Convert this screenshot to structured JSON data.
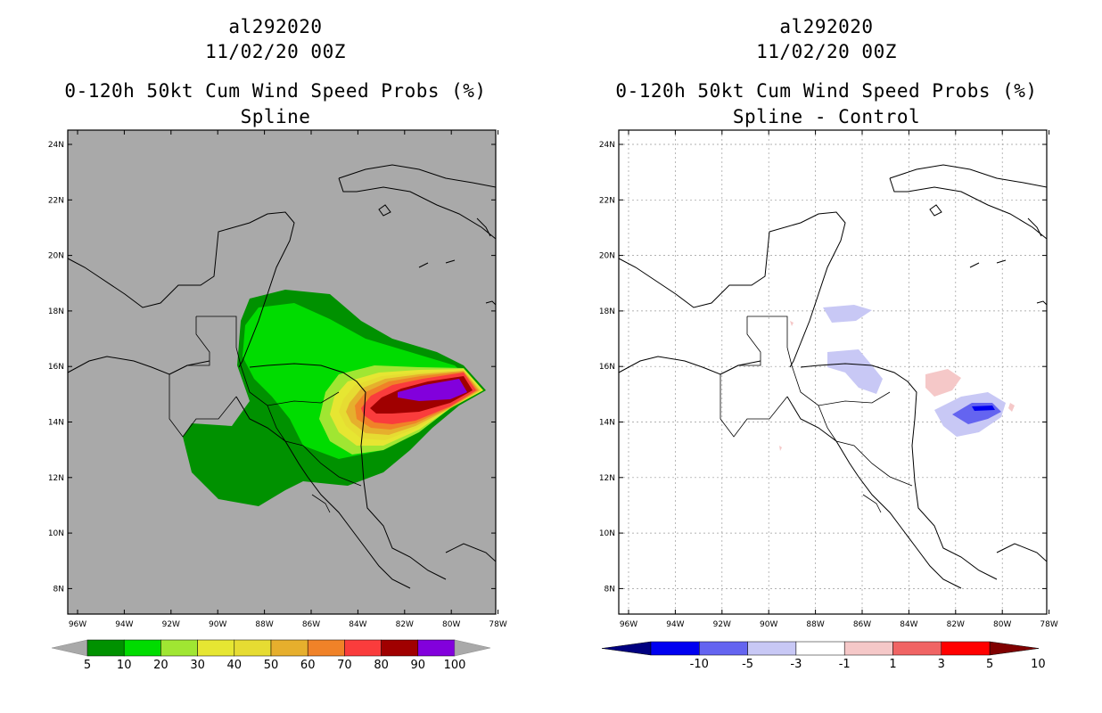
{
  "left_panel": {
    "storm_id": "al292020",
    "init_time": "11/02/20 00Z",
    "product": "0-120h 50kt Cum Wind Speed Probs (%)",
    "subtitle": "Spline",
    "colorbar": {
      "labels": [
        "5",
        "10",
        "20",
        "30",
        "40",
        "50",
        "60",
        "70",
        "80",
        "90",
        "100"
      ],
      "colors": [
        "#009100",
        "#00dc00",
        "#a0e632",
        "#e6e632",
        "#e6dc32",
        "#e6af2d",
        "#f08228",
        "#fa3c3c",
        "#a00000",
        "#8200dc"
      ],
      "end_color": "#a9a9a9"
    },
    "background_color": "#a9a9a9"
  },
  "right_panel": {
    "storm_id": "al292020",
    "init_time": "11/02/20 00Z",
    "product": "0-120h 50kt Cum Wind Speed Probs (%)",
    "subtitle": "Spline - Control",
    "colorbar": {
      "labels": [
        "-10",
        "-5",
        "-3",
        "-1",
        "1",
        "3",
        "5",
        "10"
      ],
      "colors": [
        "#0000b4",
        "#0000f0",
        "#6464f0",
        "#c8c8f5",
        "#ffffff",
        "#f5c8c8",
        "#f06464",
        "#ff0000",
        "#a00000"
      ],
      "low_end_color": "#000080",
      "high_end_color": "#800000"
    }
  },
  "axes": {
    "lon_labels": [
      "96W",
      "94W",
      "92W",
      "90W",
      "88W",
      "86W",
      "84W",
      "82W",
      "80W",
      "78W"
    ],
    "lat_labels": [
      "24N",
      "22N",
      "20N",
      "18N",
      "16N",
      "14N",
      "12N",
      "10N",
      "8N"
    ]
  }
}
